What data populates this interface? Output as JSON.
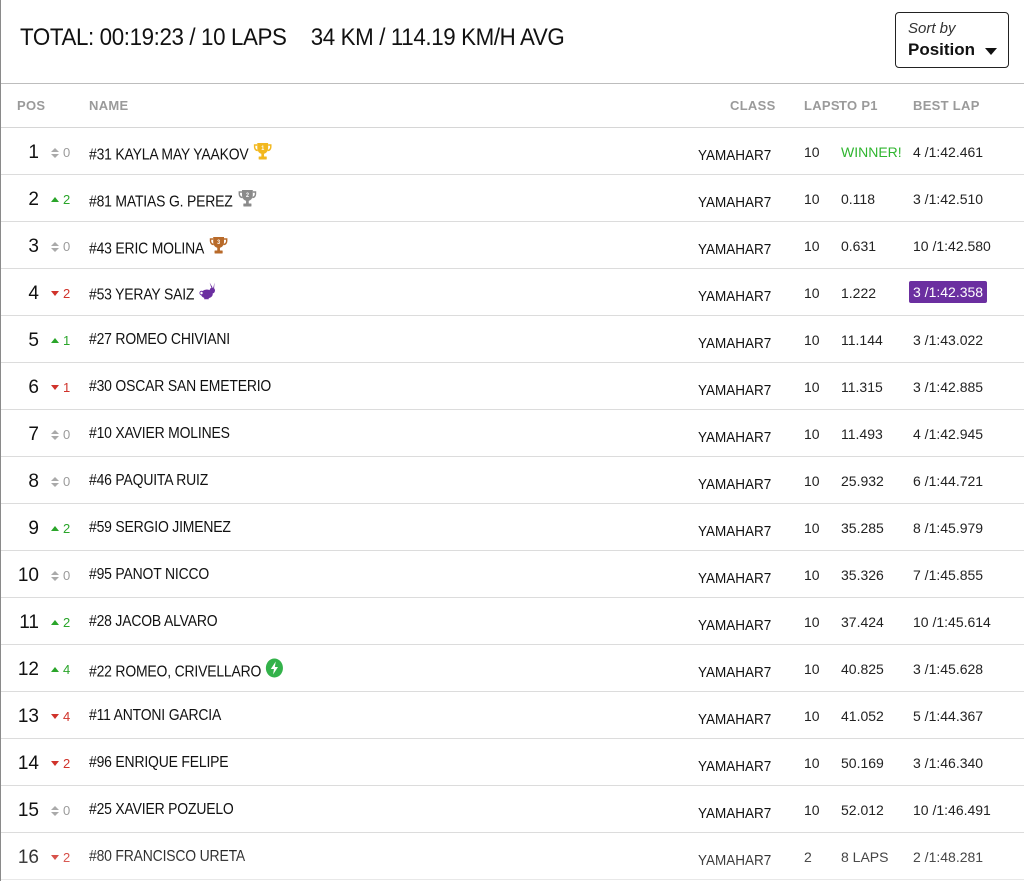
{
  "summary": {
    "total_label": "TOTAL: 00:19:23 / 10 LAPS",
    "distance_label": "34 KM / 114.19 KM/H AVG"
  },
  "sort": {
    "caption": "Sort by",
    "value": "Position"
  },
  "headers": {
    "pos": "POS",
    "name": "NAME",
    "class": "CLASS",
    "laps": "LAPS",
    "to_p1": "TO P1",
    "best_lap": "BEST LAP"
  },
  "colors": {
    "winner_text": "#2fb52f",
    "gain": "#2aa52a",
    "loss": "#d0332b",
    "fastest_lap_bg": "#6b2fa0",
    "trophy_gold": "#f2b81f",
    "trophy_silver": "#8a8a8a",
    "trophy_bronze": "#b86a2a",
    "bolt_green": "#33b24a"
  },
  "rows": [
    {
      "pos": "1",
      "dir": "same",
      "change": "0",
      "name": "#31 KAYLA MAY YAAKOV",
      "icon": "gold-trophy-icon",
      "class": "YAMAHAR7",
      "laps": "10",
      "to_p1": "WINNER!",
      "best": "4 /1:42.461",
      "fastest": false
    },
    {
      "pos": "2",
      "dir": "up",
      "change": "2",
      "name": "#81 MATIAS G. PEREZ",
      "icon": "silver-trophy-icon",
      "class": "YAMAHAR7",
      "laps": "10",
      "to_p1": "0.118",
      "best": "3 /1:42.510",
      "fastest": false
    },
    {
      "pos": "3",
      "dir": "same",
      "change": "0",
      "name": "#43 ERIC MOLINA",
      "icon": "bronze-trophy-icon",
      "class": "YAMAHAR7",
      "laps": "10",
      "to_p1": "0.631",
      "best": "10 /1:42.580",
      "fastest": false
    },
    {
      "pos": "4",
      "dir": "down",
      "change": "2",
      "name": "#53 YERAY SAIZ",
      "icon": "rabbit-icon",
      "class": "YAMAHAR7",
      "laps": "10",
      "to_p1": "1.222",
      "best": "3 /1:42.358",
      "fastest": true
    },
    {
      "pos": "5",
      "dir": "up",
      "change": "1",
      "name": "#27 ROMEO CHIVIANI",
      "icon": "",
      "class": "YAMAHAR7",
      "laps": "10",
      "to_p1": "11.144",
      "best": "3 /1:43.022",
      "fastest": false
    },
    {
      "pos": "6",
      "dir": "down",
      "change": "1",
      "name": "#30 OSCAR SAN EMETERIO",
      "icon": "",
      "class": "YAMAHAR7",
      "laps": "10",
      "to_p1": "11.315",
      "best": "3 /1:42.885",
      "fastest": false
    },
    {
      "pos": "7",
      "dir": "same",
      "change": "0",
      "name": "#10 XAVIER MOLINES",
      "icon": "",
      "class": "YAMAHAR7",
      "laps": "10",
      "to_p1": "11.493",
      "best": "4 /1:42.945",
      "fastest": false
    },
    {
      "pos": "8",
      "dir": "same",
      "change": "0",
      "name": "#46 PAQUITA RUIZ",
      "icon": "",
      "class": "YAMAHAR7",
      "laps": "10",
      "to_p1": "25.932",
      "best": "6 /1:44.721",
      "fastest": false
    },
    {
      "pos": "9",
      "dir": "up",
      "change": "2",
      "name": "#59 SERGIO JIMENEZ",
      "icon": "",
      "class": "YAMAHAR7",
      "laps": "10",
      "to_p1": "35.285",
      "best": "8 /1:45.979",
      "fastest": false
    },
    {
      "pos": "10",
      "dir": "same",
      "change": "0",
      "name": "#95 PANOT NICCO",
      "icon": "",
      "class": "YAMAHAR7",
      "laps": "10",
      "to_p1": "35.326",
      "best": "7 /1:45.855",
      "fastest": false
    },
    {
      "pos": "11",
      "dir": "up",
      "change": "2",
      "name": "#28 JACOB ALVARO",
      "icon": "",
      "class": "YAMAHAR7",
      "laps": "10",
      "to_p1": "37.424",
      "best": "10 /1:45.614",
      "fastest": false
    },
    {
      "pos": "12",
      "dir": "up",
      "change": "4",
      "name": "#22 ROMEO, CRIVELLARO",
      "icon": "bolt-icon",
      "class": "YAMAHAR7",
      "laps": "10",
      "to_p1": "40.825",
      "best": "3 /1:45.628",
      "fastest": false
    },
    {
      "pos": "13",
      "dir": "down",
      "change": "4",
      "name": "#11 ANTONI GARCIA",
      "icon": "",
      "class": "YAMAHAR7",
      "laps": "10",
      "to_p1": "41.052",
      "best": "5 /1:44.367",
      "fastest": false
    },
    {
      "pos": "14",
      "dir": "down",
      "change": "2",
      "name": "#96 ENRIQUE FELIPE",
      "icon": "",
      "class": "YAMAHAR7",
      "laps": "10",
      "to_p1": "50.169",
      "best": "3 /1:46.340",
      "fastest": false
    },
    {
      "pos": "15",
      "dir": "same",
      "change": "0",
      "name": "#25 XAVIER POZUELO",
      "icon": "",
      "class": "YAMAHAR7",
      "laps": "10",
      "to_p1": "52.012",
      "best": "10 /1:46.491",
      "fastest": false
    },
    {
      "pos": "16",
      "dir": "down",
      "change": "2",
      "name": "#80 FRANCISCO URETA",
      "icon": "",
      "class": "YAMAHAR7",
      "laps": "2",
      "to_p1": "8 LAPS",
      "best": "2 /1:48.281",
      "fastest": false
    }
  ]
}
